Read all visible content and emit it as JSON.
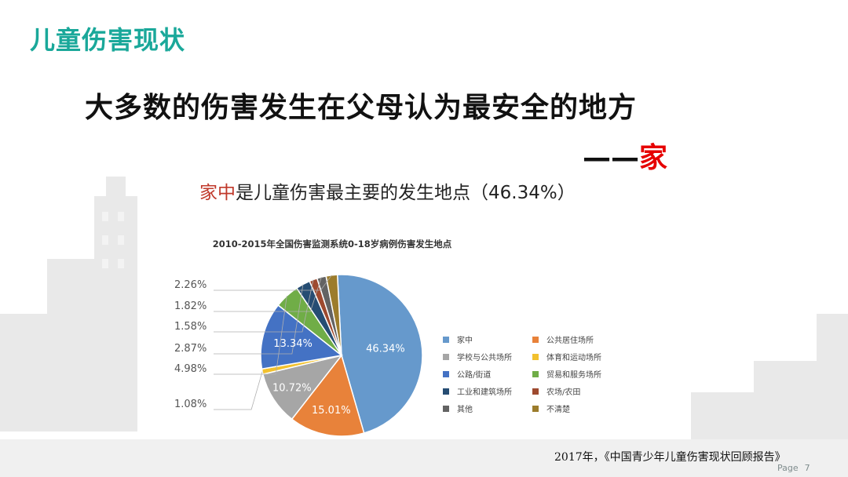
{
  "slide": {
    "title": "儿童伤害现状",
    "headline": "大多数的伤害发生在父母认为最安全的地方",
    "dash": "——",
    "dash_emphasis": "家",
    "chart_heading_accent": "家中",
    "chart_heading_rest": "是儿童伤害最主要的发生地点（46.34%）",
    "citation": "2017年，《中国青少年儿童伤害现状回顾报告》",
    "page_label": "Page",
    "page_number": "7"
  },
  "chart_data": {
    "type": "pie",
    "title": "2010-2015年全国伤害监测系统0-18岁病例伤害发生地点",
    "labels": [
      "家中",
      "公共居住场所",
      "学校与公共场所",
      "体育和运动场所",
      "公路/街道",
      "贸易和服务场所",
      "工业和建筑场所",
      "农场/农田",
      "其他",
      "不清楚"
    ],
    "values": [
      46.34,
      15.01,
      10.72,
      1.08,
      13.34,
      4.98,
      2.87,
      1.58,
      1.82,
      2.26
    ],
    "value_labels": [
      "46.34%",
      "15.01%",
      "10.72%",
      "1.08%",
      "13.34%",
      "4.98%",
      "2.87%",
      "1.58%",
      "1.82%",
      "2.26%"
    ],
    "colors": [
      "#6699cc",
      "#e8823a",
      "#a6a6a6",
      "#f2c12e",
      "#4472c4",
      "#70ad47",
      "#264d73",
      "#9e4a2f",
      "#636363",
      "#9c7c2c"
    ],
    "legend_position": "right"
  }
}
